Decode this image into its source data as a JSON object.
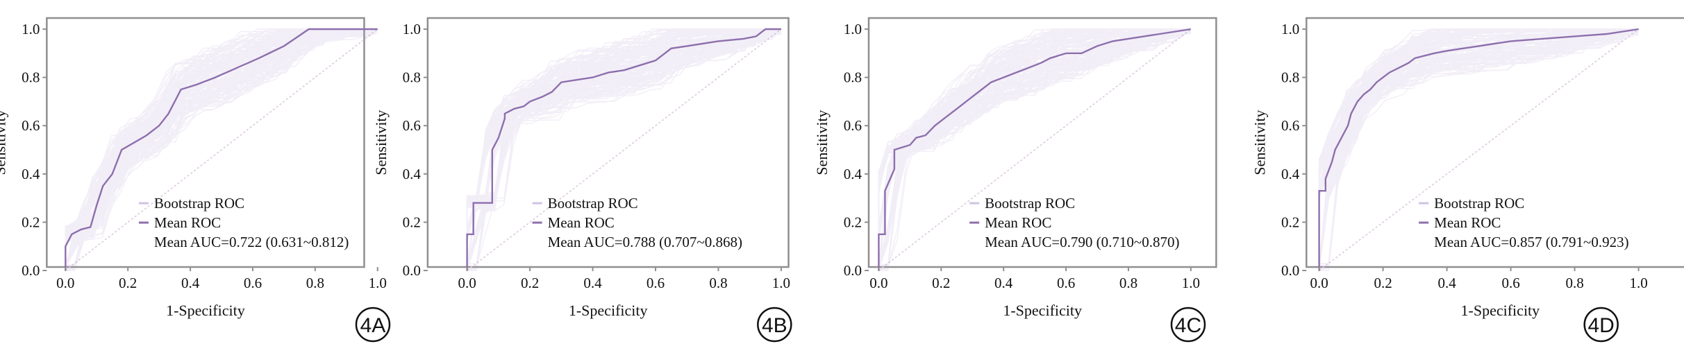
{
  "chart_data": [
    {
      "type": "line",
      "panel_label": "4A",
      "xlabel": "1-Specificity",
      "ylabel": "Sensitivity",
      "xlim": [
        0,
        1
      ],
      "ylim": [
        0,
        1
      ],
      "xticks": [
        "0.0",
        "0.2",
        "0.4",
        "0.6",
        "0.8",
        "1.0"
      ],
      "yticks": [
        "0.0",
        "0.2",
        "0.4",
        "0.6",
        "0.8",
        "1.0"
      ],
      "legend": [
        "Bootstrap ROC",
        "Mean ROC",
        "Mean AUC=0.722 (0.631~0.812)"
      ],
      "series": [
        {
          "name": "Mean ROC",
          "x": [
            0,
            0,
            0.02,
            0.05,
            0.08,
            0.1,
            0.12,
            0.15,
            0.18,
            0.22,
            0.26,
            0.3,
            0.33,
            0.37,
            0.42,
            0.48,
            0.55,
            0.62,
            0.7,
            0.78,
            0.88,
            1.0
          ],
          "y": [
            0,
            0.1,
            0.15,
            0.17,
            0.18,
            0.27,
            0.35,
            0.4,
            0.5,
            0.53,
            0.56,
            0.6,
            0.65,
            0.75,
            0.77,
            0.8,
            0.84,
            0.88,
            0.93,
            1.0,
            1.0,
            1.0
          ]
        }
      ]
    },
    {
      "type": "line",
      "panel_label": "4B",
      "xlabel": "1-Specificity",
      "ylabel": "Sensitivity",
      "xlim": [
        0,
        1
      ],
      "ylim": [
        0,
        1
      ],
      "xticks": [
        "0.0",
        "0.2",
        "0.4",
        "0.6",
        "0.8",
        "1.0"
      ],
      "yticks": [
        "0.0",
        "0.2",
        "0.4",
        "0.6",
        "0.8",
        "1.0"
      ],
      "legend": [
        "Bootstrap ROC",
        "Mean ROC",
        "Mean AUC=0.788 (0.707~0.868)"
      ],
      "series": [
        {
          "name": "Mean ROC",
          "x": [
            0,
            0,
            0.02,
            0.02,
            0.08,
            0.08,
            0.1,
            0.12,
            0.12,
            0.15,
            0.18,
            0.2,
            0.24,
            0.27,
            0.3,
            0.35,
            0.4,
            0.45,
            0.5,
            0.55,
            0.6,
            0.65,
            0.7,
            0.8,
            0.88,
            0.92,
            0.95,
            1.0
          ],
          "y": [
            0,
            0.15,
            0.15,
            0.28,
            0.28,
            0.5,
            0.55,
            0.63,
            0.65,
            0.67,
            0.68,
            0.7,
            0.72,
            0.74,
            0.78,
            0.79,
            0.8,
            0.82,
            0.83,
            0.85,
            0.87,
            0.92,
            0.93,
            0.95,
            0.96,
            0.97,
            1.0,
            1.0
          ]
        }
      ]
    },
    {
      "type": "line",
      "panel_label": "4C",
      "xlabel": "1-Specificity",
      "ylabel": "Sensitivity",
      "xlim": [
        0,
        1
      ],
      "ylim": [
        0,
        1
      ],
      "xticks": [
        "0.0",
        "0.2",
        "0.4",
        "0.6",
        "0.8",
        "1.0"
      ],
      "yticks": [
        "0.0",
        "0.2",
        "0.4",
        "0.6",
        "0.8",
        "1.0"
      ],
      "legend": [
        "Bootstrap ROC",
        "Mean ROC",
        "Mean AUC=0.790 (0.710~0.870)"
      ],
      "series": [
        {
          "name": "Mean ROC",
          "x": [
            0,
            0,
            0.02,
            0.02,
            0.05,
            0.05,
            0.1,
            0.12,
            0.15,
            0.18,
            0.2,
            0.23,
            0.26,
            0.3,
            0.33,
            0.36,
            0.4,
            0.44,
            0.48,
            0.52,
            0.55,
            0.6,
            0.65,
            0.7,
            0.75,
            0.8,
            0.85,
            0.9,
            0.95,
            1.0
          ],
          "y": [
            0,
            0.15,
            0.15,
            0.33,
            0.42,
            0.5,
            0.52,
            0.55,
            0.56,
            0.6,
            0.62,
            0.65,
            0.68,
            0.72,
            0.75,
            0.78,
            0.8,
            0.82,
            0.84,
            0.86,
            0.88,
            0.9,
            0.9,
            0.93,
            0.95,
            0.96,
            0.97,
            0.98,
            0.99,
            1.0
          ]
        }
      ]
    },
    {
      "type": "line",
      "panel_label": "4D",
      "xlabel": "1-Specificity",
      "ylabel": "Sensitivity",
      "xlim": [
        0,
        1
      ],
      "ylim": [
        0,
        1
      ],
      "xticks": [
        "0.0",
        "0.2",
        "0.4",
        "0.6",
        "0.8",
        "1.0"
      ],
      "yticks": [
        "0.0",
        "0.2",
        "0.4",
        "0.6",
        "0.8",
        "1.0"
      ],
      "legend": [
        "Bootstrap ROC",
        "Mean ROC",
        "Mean AUC=0.857 (0.791~0.923)"
      ],
      "series": [
        {
          "name": "Mean ROC",
          "x": [
            0,
            0,
            0.02,
            0.02,
            0.04,
            0.05,
            0.07,
            0.09,
            0.1,
            0.12,
            0.14,
            0.16,
            0.18,
            0.2,
            0.22,
            0.25,
            0.28,
            0.3,
            0.33,
            0.36,
            0.4,
            0.45,
            0.5,
            0.6,
            0.7,
            0.8,
            0.9,
            1.0
          ],
          "y": [
            0,
            0.33,
            0.33,
            0.38,
            0.45,
            0.5,
            0.55,
            0.6,
            0.65,
            0.7,
            0.73,
            0.75,
            0.78,
            0.8,
            0.82,
            0.84,
            0.86,
            0.88,
            0.89,
            0.9,
            0.91,
            0.92,
            0.93,
            0.95,
            0.96,
            0.97,
            0.98,
            1.0
          ]
        }
      ]
    }
  ],
  "colors": {
    "bootstrap": "#b39ccf",
    "mean": "#8d6fad",
    "diagonal": "#ddc9de",
    "frame": "#8f8f8f"
  }
}
